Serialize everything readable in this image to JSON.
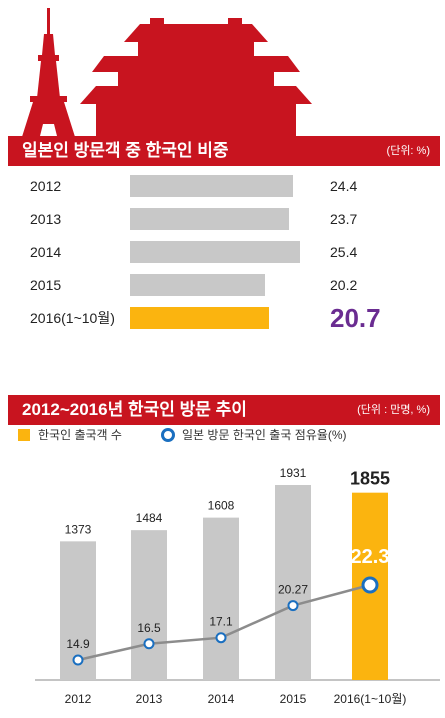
{
  "colors": {
    "red": "#c8141f",
    "gray": "#c8c8c8",
    "gold": "#fbb40f",
    "purple": "#6a2c91",
    "blue": "#1a6fc0"
  },
  "section1": {
    "title": "일본인 방문객 중 한국인 비중",
    "unit": "(단위: %)"
  },
  "section2": {
    "title": "2012~2016년 한국인 방문 추이",
    "unit": "(단위 : 만명, %)",
    "legend_bar": "한국인 출국객 수",
    "legend_line": "일본 방문 한국인 출국 점유율(%)"
  },
  "chart_data": [
    {
      "type": "bar",
      "orientation": "horizontal",
      "title": "일본인 방문객 중 한국인 비중",
      "unit": "(단위: %)",
      "categories": [
        "2012",
        "2013",
        "2014",
        "2015",
        "2016(1~10월)"
      ],
      "value_labels": [
        "24.4",
        "23.7",
        "25.4",
        "20.2",
        "20.7"
      ],
      "values": [
        24.4,
        23.7,
        25.4,
        20.2,
        20.7
      ],
      "highlight_index": 4
    },
    {
      "type": "bar",
      "title": "2012~2016년 한국인 방문 추이",
      "unit": "(단위 : 만명, %)",
      "categories": [
        "2012",
        "2013",
        "2014",
        "2015",
        "2016(1~10월)"
      ],
      "series": [
        {
          "name": "한국인 출국객 수",
          "type": "bar",
          "values": [
            1373,
            1484,
            1608,
            1931,
            1855
          ],
          "value_labels": [
            "1373",
            "1484",
            "1608",
            "1931",
            "1855"
          ]
        },
        {
          "name": "일본 방문 한국인 출국 점유율(%)",
          "type": "line",
          "values": [
            14.9,
            16.5,
            17.1,
            20.27,
            22.3
          ],
          "value_labels": [
            "14.9",
            "16.5",
            "17.1",
            "20.27",
            "22.3"
          ]
        }
      ],
      "highlight_index": 4
    }
  ]
}
